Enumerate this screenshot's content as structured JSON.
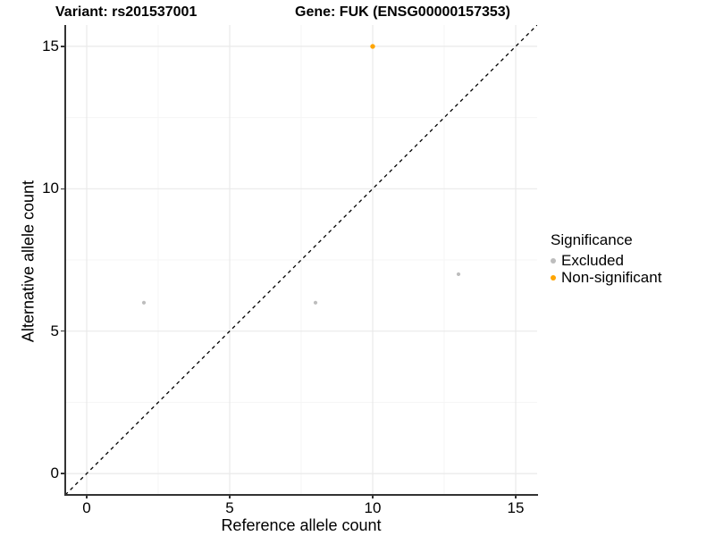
{
  "chart_data": {
    "type": "scatter",
    "title_parts": [
      "Variant: rs201537001",
      "Gene: FUK (ENSG00000157353)"
    ],
    "xlabel": "Reference allele count",
    "ylabel": "Alternative allele count",
    "xlim": [
      -0.75,
      15.75
    ],
    "ylim": [
      -0.75,
      15.75
    ],
    "x_ticks": [
      0,
      5,
      10,
      15
    ],
    "y_ticks": [
      0,
      5,
      10,
      15
    ],
    "x_minor_ticks": [
      2.5,
      7.5,
      12.5
    ],
    "y_minor_ticks": [
      2.5,
      7.5,
      12.5
    ],
    "grid": true,
    "background": "#ffffff",
    "colors": {
      "major_grid": "#e9e9e9",
      "minor_grid": "#f5f5f5",
      "axis_line": "#333333",
      "reference_line": "#000000"
    },
    "reference_line": {
      "type": "identity",
      "style": "dashed",
      "color": "#000000"
    },
    "legend": {
      "title": "Significance",
      "position": "right",
      "entries": [
        {
          "label": "Excluded",
          "color": "#bdbdbd"
        },
        {
          "label": "Non-significant",
          "color": "#ffa500"
        }
      ]
    },
    "series": [
      {
        "name": "Excluded",
        "color": "#bdbdbd",
        "size": 2.1,
        "points": [
          {
            "x": 2,
            "y": 6
          },
          {
            "x": 8,
            "y": 6
          },
          {
            "x": 13,
            "y": 7
          }
        ]
      },
      {
        "name": "Non-significant",
        "color": "#ffa500",
        "size": 2.7,
        "points": [
          {
            "x": 10,
            "y": 15
          }
        ]
      }
    ]
  }
}
